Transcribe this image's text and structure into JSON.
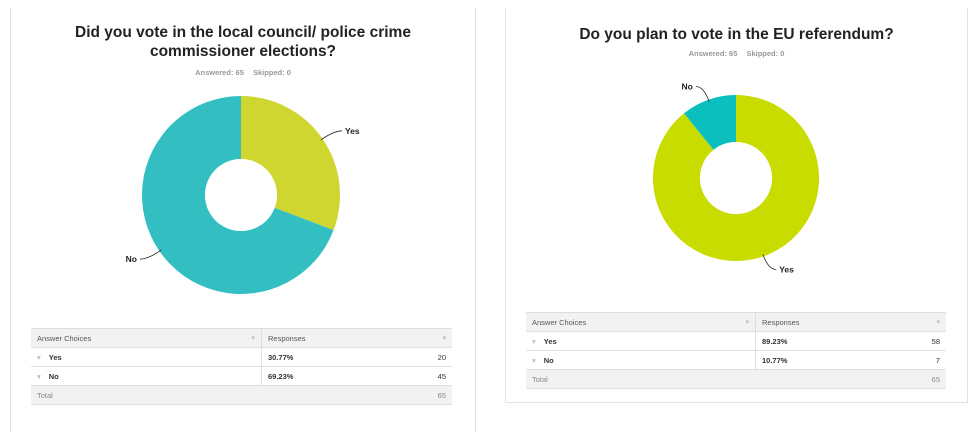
{
  "chart_data": [
    {
      "type": "pie",
      "title": "Did you vote in the local council/ police crime commissioner elections?",
      "answered_label": "Answered: 65",
      "skipped_label": "Skipped: 0",
      "categories": [
        "Yes",
        "No"
      ],
      "values": [
        30.77,
        69.23
      ],
      "colors": [
        "#cfd62f",
        "#33bfc2"
      ],
      "table": {
        "headers": [
          "Answer Choices",
          "Responses"
        ],
        "rows": [
          {
            "choice": "Yes",
            "percent": "30.77%",
            "count": "20"
          },
          {
            "choice": "No",
            "percent": "69.23%",
            "count": "45"
          }
        ],
        "total_label": "Total",
        "total_value": "65"
      }
    },
    {
      "type": "pie",
      "title": "Do you plan to vote in the EU referendum?",
      "answered_label": "Answered: 65",
      "skipped_label": "Skipped: 0",
      "categories": [
        "Yes",
        "No"
      ],
      "values": [
        89.23,
        10.77
      ],
      "colors": [
        "#c8dc00",
        "#0bbfbf"
      ],
      "table": {
        "headers": [
          "Answer Choices",
          "Responses"
        ],
        "rows": [
          {
            "choice": "Yes",
            "percent": "89.23%",
            "count": "58"
          },
          {
            "choice": "No",
            "percent": "10.77%",
            "count": "7"
          }
        ],
        "total_label": "Total",
        "total_value": "65"
      }
    }
  ]
}
